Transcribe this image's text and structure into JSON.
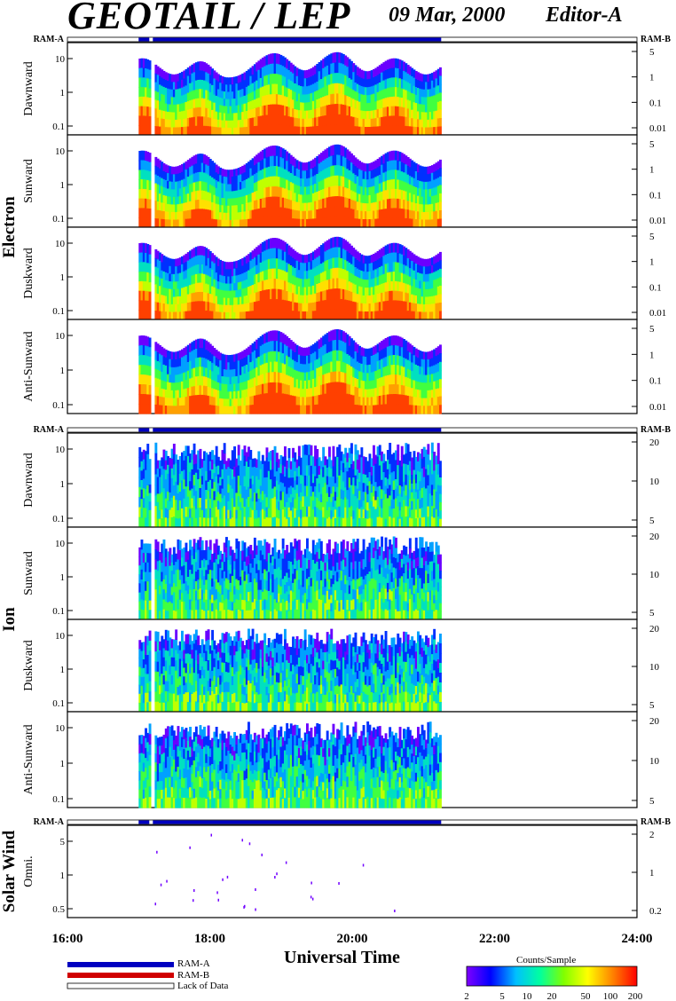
{
  "header": {
    "title": "GEOTAIL / LEP",
    "date": "09 Mar, 2000",
    "editor": "Editor-A"
  },
  "ram": {
    "a": "RAM-A",
    "b": "RAM-B"
  },
  "groups": {
    "electron": "Electron",
    "ion": "Ion",
    "solar_wind": "Solar Wind"
  },
  "x_axis": {
    "title": "Universal Time",
    "ticks": [
      "16:00",
      "18:00",
      "20:00",
      "22:00",
      "24:00"
    ]
  },
  "legend": {
    "ram_a": "RAM-A",
    "ram_b": "RAM-B",
    "lack": "Lack of Data",
    "ram_a_color": "#0000c0",
    "ram_b_color": "#d00000"
  },
  "colorbar": {
    "title": "Counts/Sample",
    "ticks": [
      "2",
      "5",
      "10",
      "20",
      "50",
      "100",
      "200"
    ]
  },
  "chart_data": {
    "type": "heatmap",
    "x_range_hours": [
      16,
      24
    ],
    "data_coverage_hours": [
      17.0,
      21.25
    ],
    "data_gaps_hours": [
      [
        17.15,
        17.2
      ]
    ],
    "panels": [
      {
        "group": "Electron",
        "ylabel": "Dawnward",
        "left_ticks": [
          "10",
          "1",
          "0.1"
        ],
        "right_ticks": [
          "5",
          "1",
          "0.1",
          "0.01"
        ]
      },
      {
        "group": "Electron",
        "ylabel": "Sunward",
        "left_ticks": [
          "10",
          "1",
          "0.1"
        ],
        "right_ticks": [
          "5",
          "1",
          "0.1",
          "0.01"
        ]
      },
      {
        "group": "Electron",
        "ylabel": "Duskward",
        "left_ticks": [
          "10",
          "1",
          "0.1"
        ],
        "right_ticks": [
          "5",
          "1",
          "0.1",
          "0.01"
        ]
      },
      {
        "group": "Electron",
        "ylabel": "Anti-Sunward",
        "left_ticks": [
          "10",
          "1",
          "0.1"
        ],
        "right_ticks": [
          "5",
          "1",
          "0.1",
          "0.01"
        ]
      },
      {
        "group": "Ion",
        "ylabel": "Dawnward",
        "left_ticks": [
          "10",
          "1",
          "0.1"
        ],
        "right_ticks": [
          "20",
          "10",
          "5"
        ]
      },
      {
        "group": "Ion",
        "ylabel": "Sunward",
        "left_ticks": [
          "10",
          "1",
          "0.1"
        ],
        "right_ticks": [
          "20",
          "10",
          "5"
        ]
      },
      {
        "group": "Ion",
        "ylabel": "Duskward",
        "left_ticks": [
          "10",
          "1",
          "0.1"
        ],
        "right_ticks": [
          "20",
          "10",
          "5"
        ]
      },
      {
        "group": "Ion",
        "ylabel": "Anti-Sunward",
        "left_ticks": [
          "10",
          "1",
          "0.1"
        ],
        "right_ticks": [
          "20",
          "10",
          "5"
        ]
      },
      {
        "group": "Solar Wind",
        "ylabel": "Omni.",
        "left_ticks": [
          "5",
          "1",
          "0.5"
        ],
        "right_ticks": [
          "2",
          "1",
          "0.2"
        ]
      }
    ]
  }
}
